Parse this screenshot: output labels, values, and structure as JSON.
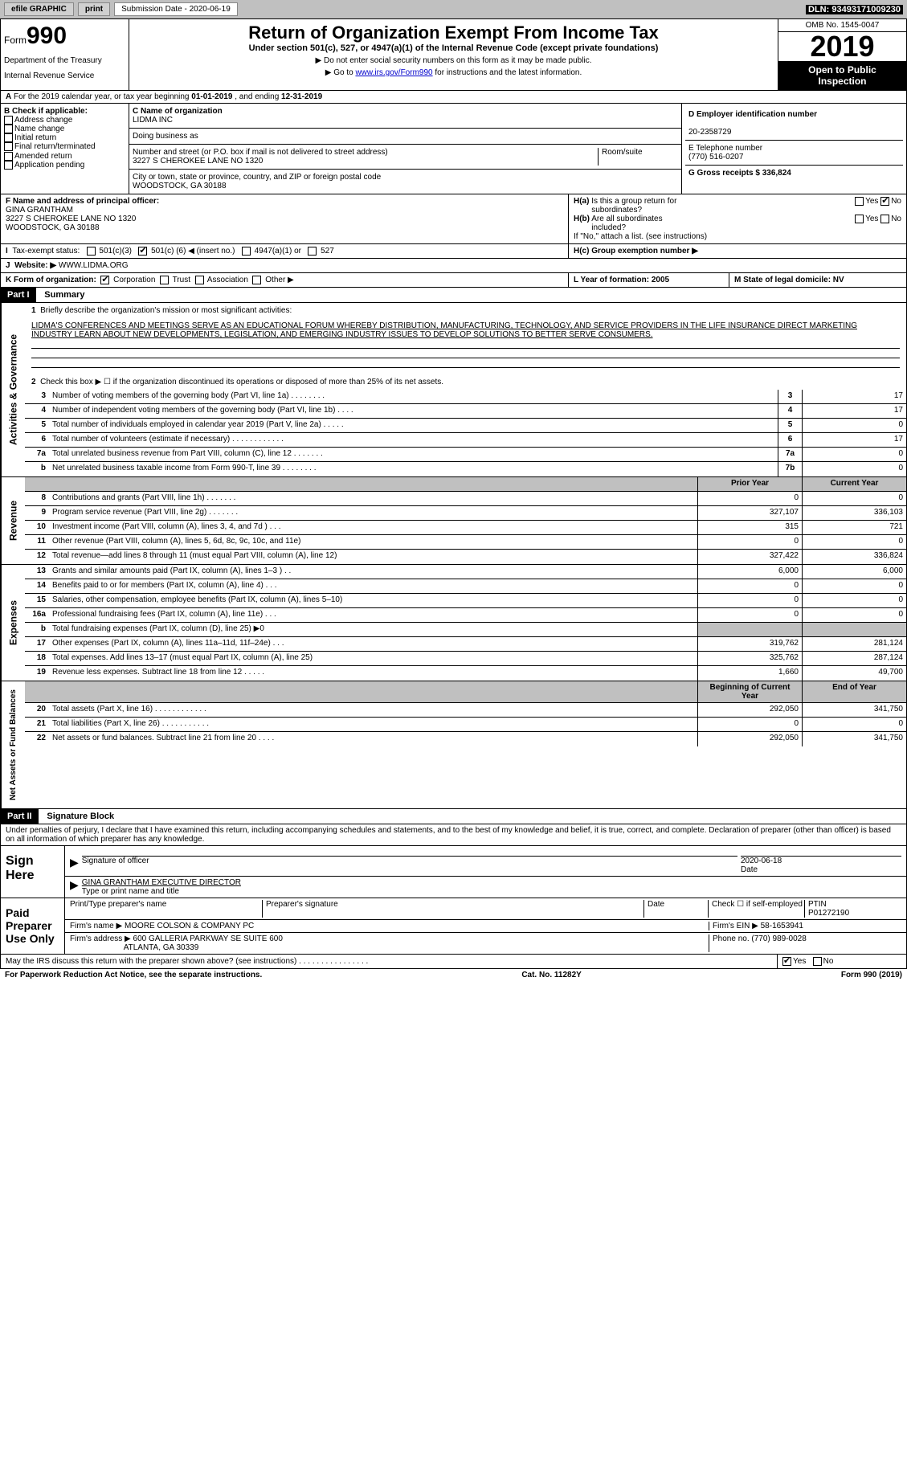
{
  "topbar": {
    "efile": "efile GRAPHIC",
    "print": "print",
    "sub_label": "Submission Date - 2020-06-19",
    "dln": "DLN: 93493171009230"
  },
  "header": {
    "form_prefix": "Form",
    "form_num": "990",
    "dept1": "Department of the Treasury",
    "dept2": "Internal Revenue Service",
    "title": "Return of Organization Exempt From Income Tax",
    "subtitle": "Under section 501(c), 527, or 4947(a)(1) of the Internal Revenue Code (except private foundations)",
    "instr1": "▶ Do not enter social security numbers on this form as it may be made public.",
    "instr2_pre": "▶ Go to ",
    "instr2_link": "www.irs.gov/Form990",
    "instr2_post": " for instructions and the latest information.",
    "omb": "OMB No. 1545-0047",
    "year": "2019",
    "inspect1": "Open to Public",
    "inspect2": "Inspection"
  },
  "row_a": {
    "text_a": "A",
    "text": "For the 2019 calendar year, or tax year beginning ",
    "begin": "01-01-2019",
    "mid": " , and ending ",
    "end": "12-31-2019"
  },
  "section_b": {
    "b_label": "B Check if applicable:",
    "opts": [
      "Address change",
      "Name change",
      "Initial return",
      "Final return/terminated",
      "Amended return",
      "Application pending"
    ],
    "c_label": "C Name of organization",
    "c_name": "LIDMA INC",
    "dba_label": "Doing business as",
    "addr_label": "Number and street (or P.O. box if mail is not delivered to street address)",
    "room_label": "Room/suite",
    "addr": "3227 S CHEROKEE LANE NO 1320",
    "city_label": "City or town, state or province, country, and ZIP or foreign postal code",
    "city": "WOODSTOCK, GA  30188",
    "d_label": "D Employer identification number",
    "d_val": "20-2358729",
    "e_label": "E Telephone number",
    "e_val": "(770) 516-0207",
    "g_label": "G Gross receipts $ 336,824"
  },
  "section_f": {
    "f_label": "F Name and address of principal officer:",
    "f_name": "GINA GRANTHAM",
    "f_addr1": "3227 S CHEROKEE LANE NO 1320",
    "f_addr2": "WOODSTOCK, GA  30188",
    "ha_label": "H(a)  Is this a group return for subordinates?",
    "hb_label": "H(b)  Are all subordinates included?",
    "hb_note": "If \"No,\" attach a list. (see instructions)",
    "hc_label": "H(c)  Group exemption number ▶",
    "yes": "Yes",
    "no": "No"
  },
  "tax_exempt": {
    "label": "Tax-exempt status:",
    "opt1": "501(c)(3)",
    "opt2_pre": "501(c) (",
    "opt2_num": "6",
    "opt2_post": ") ◀ (insert no.)",
    "opt3": "4947(a)(1) or",
    "opt4": "527"
  },
  "website": {
    "label_j": "J",
    "label": "Website: ▶",
    "val": "WWW.LIDMA.ORG"
  },
  "row_k": {
    "k_label": "K Form of organization:",
    "opts": [
      "Corporation",
      "Trust",
      "Association",
      "Other ▶"
    ],
    "l_label": "L Year of formation: 2005",
    "m_label": "M State of legal domicile: NV"
  },
  "part1": {
    "header": "Part I",
    "title": "Summary",
    "q1": "Briefly describe the organization's mission or most significant activities:",
    "mission": "LIDMA'S CONFERENCES AND MEETINGS SERVE AS AN EDUCATIONAL FORUM WHEREBY DISTRIBUTION, MANUFACTURING, TECHNOLOGY, AND SERVICE PROVIDERS IN THE LIFE INSURANCE DIRECT MARKETING INDUSTRY LEARN ABOUT NEW DEVELOPMENTS, LEGISLATION, AND EMERGING INDUSTRY ISSUES TO DEVELOP SOLUTIONS TO BETTER SERVE CONSUMERS.",
    "q2": "Check this box ▶ ☐ if the organization discontinued its operations or disposed of more than 25% of its net assets.",
    "activities_label": "Activities & Governance",
    "revenue_label": "Revenue",
    "expenses_label": "Expenses",
    "netassets_label": "Net Assets or Fund Balances",
    "rows_act": [
      {
        "n": "3",
        "t": "Number of voting members of the governing body (Part VI, line 1a)   .    .    .    .    .    .    .    .",
        "ln": "3",
        "v": "17"
      },
      {
        "n": "4",
        "t": "Number of independent voting members of the governing body (Part VI, line 1b)  .    .    .    .",
        "ln": "4",
        "v": "17"
      },
      {
        "n": "5",
        "t": "Total number of individuals employed in calendar year 2019 (Part V, line 2a)  .    .    .    .    .",
        "ln": "5",
        "v": "0"
      },
      {
        "n": "6",
        "t": "Total number of volunteers (estimate if necessary)    .    .    .    .    .    .    .    .    .    .    .    .",
        "ln": "6",
        "v": "17"
      },
      {
        "n": "7a",
        "t": "Total unrelated business revenue from Part VIII, column (C), line 12   .    .    .    .    .    .    .",
        "ln": "7a",
        "v": "0"
      },
      {
        "n": "b",
        "t": "Net unrelated business taxable income from Form 990-T, line 39    .    .    .    .    .    .    .    .",
        "ln": "7b",
        "v": "0"
      }
    ],
    "prior_year": "Prior Year",
    "current_year": "Current Year",
    "rows_rev": [
      {
        "n": "8",
        "t": "Contributions and grants (Part VIII, line 1h)   .    .    .    .    .    .    .",
        "p": "0",
        "c": "0"
      },
      {
        "n": "9",
        "t": "Program service revenue (Part VIII, line 2g)   .    .    .    .    .    .    .",
        "p": "327,107",
        "c": "336,103"
      },
      {
        "n": "10",
        "t": "Investment income (Part VIII, column (A), lines 3, 4, and 7d )    .    .    .",
        "p": "315",
        "c": "721"
      },
      {
        "n": "11",
        "t": "Other revenue (Part VIII, column (A), lines 5, 6d, 8c, 9c, 10c, and 11e)",
        "p": "0",
        "c": "0"
      },
      {
        "n": "12",
        "t": "Total revenue—add lines 8 through 11 (must equal Part VIII, column (A), line 12)",
        "p": "327,422",
        "c": "336,824"
      }
    ],
    "rows_exp": [
      {
        "n": "13",
        "t": "Grants and similar amounts paid (Part IX, column (A), lines 1–3 )  .    .",
        "p": "6,000",
        "c": "6,000"
      },
      {
        "n": "14",
        "t": "Benefits paid to or for members (Part IX, column (A), line 4)  .    .    .",
        "p": "0",
        "c": "0"
      },
      {
        "n": "15",
        "t": "Salaries, other compensation, employee benefits (Part IX, column (A), lines 5–10)",
        "p": "0",
        "c": "0"
      },
      {
        "n": "16a",
        "t": "Professional fundraising fees (Part IX, column (A), line 11e)  .    .    .",
        "p": "0",
        "c": "0"
      },
      {
        "n": "b",
        "t": "Total fundraising expenses (Part IX, column (D), line 25) ▶0",
        "p": "",
        "c": "",
        "shade": true
      },
      {
        "n": "17",
        "t": "Other expenses (Part IX, column (A), lines 11a–11d, 11f–24e)   .    .    .",
        "p": "319,762",
        "c": "281,124"
      },
      {
        "n": "18",
        "t": "Total expenses. Add lines 13–17 (must equal Part IX, column (A), line 25)",
        "p": "325,762",
        "c": "287,124"
      },
      {
        "n": "19",
        "t": "Revenue less expenses. Subtract line 18 from line 12    .    .    .    .    .",
        "p": "1,660",
        "c": "49,700"
      }
    ],
    "begin_year": "Beginning of Current Year",
    "end_year": "End of Year",
    "rows_net": [
      {
        "n": "20",
        "t": "Total assets (Part X, line 16)  .    .    .    .    .    .    .    .    .    .    .    .",
        "p": "292,050",
        "c": "341,750"
      },
      {
        "n": "21",
        "t": "Total liabilities (Part X, line 26)  .    .    .    .    .    .    .    .    .    .    .",
        "p": "0",
        "c": "0"
      },
      {
        "n": "22",
        "t": "Net assets or fund balances. Subtract line 21 from line 20   .    .    .    .",
        "p": "292,050",
        "c": "341,750"
      }
    ]
  },
  "part2": {
    "header": "Part II",
    "title": "Signature Block",
    "decl": "Under penalties of perjury, I declare that I have examined this return, including accompanying schedules and statements, and to the best of my knowledge and belief, it is true, correct, and complete. Declaration of preparer (other than officer) is based on all information of which preparer has any knowledge.",
    "sign_here": "Sign Here",
    "sig_officer": "Signature of officer",
    "sig_date": "2020-06-18",
    "date_label": "Date",
    "officer_name": "GINA GRANTHAM  EXECUTIVE DIRECTOR",
    "officer_sub": "Type or print name and title",
    "paid": "Paid Preparer Use Only",
    "prep_name_label": "Print/Type preparer's name",
    "prep_sig_label": "Preparer's signature",
    "check_self": "Check ☐ if self-employed",
    "ptin_label": "PTIN",
    "ptin": "P01272190",
    "firm_name_label": "Firm's name    ▶",
    "firm_name": "MOORE COLSON & COMPANY PC",
    "firm_ein_label": "Firm's EIN ▶",
    "firm_ein": "58-1653941",
    "firm_addr_label": "Firm's address ▶",
    "firm_addr1": "600 GALLERIA PARKWAY SE SUITE 600",
    "firm_addr2": "ATLANTA, GA  30339",
    "phone_label": "Phone no.",
    "phone": "(770) 989-0028",
    "discuss": "May the IRS discuss this return with the preparer shown above? (see instructions)   .    .    .    .    .    .    .    .    .    .    .    .    .    .    .    .",
    "yes": "Yes",
    "no": "No"
  },
  "footer": {
    "left": "For Paperwork Reduction Act Notice, see the separate instructions.",
    "mid": "Cat. No. 11282Y",
    "right": "Form 990 (2019)"
  }
}
